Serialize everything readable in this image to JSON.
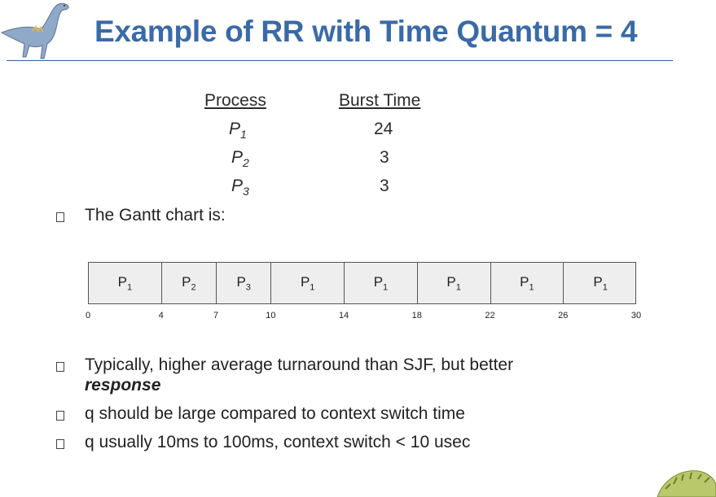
{
  "title": "Example of RR with Time Quantum = 4",
  "table": {
    "headers": {
      "process": "Process",
      "burst": "Burst Time"
    },
    "rows": [
      {
        "name": "P",
        "sub": "1",
        "burst": "24"
      },
      {
        "name": "P",
        "sub": "2",
        "burst": "3"
      },
      {
        "name": "P",
        "sub": "3",
        "burst": "3"
      }
    ]
  },
  "gantt_intro": "The Gantt chart is:",
  "chart_data": {
    "type": "gantt",
    "segments": [
      {
        "label": "P",
        "sub": "1",
        "start": 0,
        "end": 4
      },
      {
        "label": "P",
        "sub": "2",
        "start": 4,
        "end": 7
      },
      {
        "label": "P",
        "sub": "3",
        "start": 7,
        "end": 10
      },
      {
        "label": "P",
        "sub": "1",
        "start": 10,
        "end": 14
      },
      {
        "label": "P",
        "sub": "1",
        "start": 14,
        "end": 18
      },
      {
        "label": "P",
        "sub": "1",
        "start": 18,
        "end": 22
      },
      {
        "label": "P",
        "sub": "1",
        "start": 22,
        "end": 26
      },
      {
        "label": "P",
        "sub": "1",
        "start": 26,
        "end": 30
      }
    ],
    "ticks": [
      "0",
      "4",
      "7",
      "10",
      "14",
      "18",
      "22",
      "26",
      "30"
    ],
    "xlim": [
      0,
      30
    ]
  },
  "bullets": {
    "b2_line1": "Typically, higher average turnaround than SJF, but better",
    "b2_line2": "response",
    "b3": "q should be large compared to context switch time",
    "b4": "q usually 10ms to 100ms, context switch < 10 usec"
  }
}
